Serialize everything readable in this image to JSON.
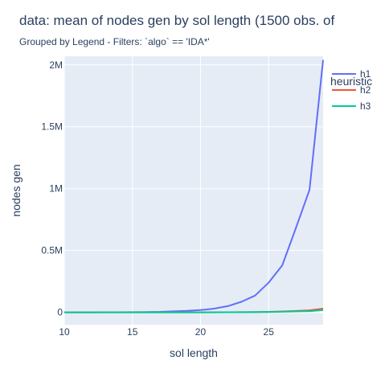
{
  "chart_data": {
    "type": "line",
    "title": "data: mean of nodes gen  by sol length (1500 obs. of",
    "subtitle": "Grouped by Legend - Filters: `algo` == 'IDA*'",
    "xlabel": "sol length",
    "ylabel": "nodes gen",
    "xlim": [
      10,
      29
    ],
    "ylim": [
      -100000,
      2070000
    ],
    "x_ticks": [
      10,
      15,
      20,
      25
    ],
    "x_tick_labels": [
      "10",
      "15",
      "20",
      "25"
    ],
    "y_ticks": [
      0,
      500000,
      1000000,
      1500000,
      2000000
    ],
    "y_tick_labels": [
      "0",
      "0.5M",
      "1M",
      "1.5M",
      "2M"
    ],
    "grid": true,
    "legend_title": "heuristic",
    "legend_position": "right",
    "background": "#e5ecf6",
    "series": [
      {
        "name": "h1",
        "color": "#636efa",
        "x": [
          10,
          11,
          12,
          13,
          14,
          15,
          16,
          17,
          18,
          19,
          20,
          21,
          22,
          23,
          24,
          25,
          26,
          27,
          28,
          29
        ],
        "values": [
          0,
          100,
          200,
          400,
          700,
          1200,
          2500,
          4000,
          8000,
          12000,
          18000,
          30000,
          50000,
          85000,
          135000,
          240000,
          380000,
          680000,
          990000,
          2040000
        ]
      },
      {
        "name": "h2",
        "color": "#ef553b",
        "x": [
          10,
          12,
          14,
          16,
          18,
          20,
          22,
          24,
          25,
          26,
          27,
          28,
          29
        ],
        "values": [
          0,
          0,
          0,
          0,
          100,
          300,
          800,
          2000,
          4000,
          7000,
          11000,
          16000,
          30000
        ]
      },
      {
        "name": "h3",
        "color": "#00cc96",
        "x": [
          10,
          12,
          14,
          16,
          18,
          20,
          22,
          24,
          25,
          26,
          27,
          28,
          29
        ],
        "values": [
          0,
          0,
          0,
          0,
          100,
          200,
          500,
          1200,
          2500,
          4500,
          7000,
          9000,
          18000
        ]
      }
    ]
  }
}
